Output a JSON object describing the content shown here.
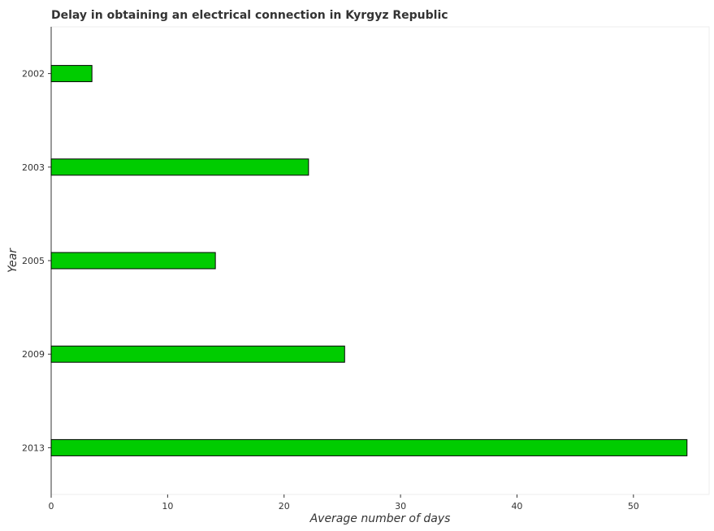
{
  "chart_data": {
    "type": "bar",
    "orientation": "horizontal",
    "title": "Delay in obtaining an electrical connection in Kyrgyz Republic",
    "xlabel": "Average number of days",
    "ylabel": "Year",
    "categories": [
      "2002",
      "2003",
      "2005",
      "2009",
      "2013"
    ],
    "values": [
      3.5,
      22.1,
      14.1,
      25.2,
      54.6
    ],
    "xlim": [
      0,
      56.5
    ],
    "xticks": [
      0,
      10,
      20,
      30,
      40,
      50
    ],
    "bar_color": "#00cc00",
    "grid": false,
    "legend": "none"
  }
}
